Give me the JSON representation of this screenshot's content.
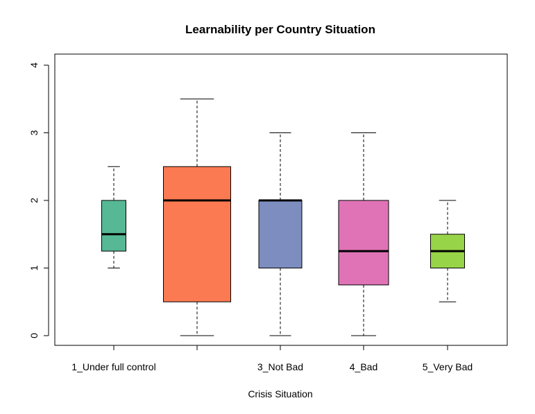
{
  "chart_data": {
    "type": "boxplot",
    "title": "Learnability per Country Situation",
    "xlabel": "Crisis Situation",
    "ylabel": "",
    "ylim": [
      0,
      4
    ],
    "yticks": [
      0,
      1,
      2,
      3,
      4
    ],
    "tick_labels": [
      "1_Under full control",
      "",
      "3_Not Bad",
      "4_Bad",
      "5_Very Bad"
    ],
    "boxes": [
      {
        "whisker_low": 1.0,
        "q1": 1.25,
        "median": 1.5,
        "q3": 2.0,
        "whisker_high": 2.5,
        "color": "#56B894"
      },
      {
        "whisker_low": 0.0,
        "q1": 0.5,
        "median": 2.0,
        "q3": 2.5,
        "whisker_high": 3.5,
        "color": "#FB7A52"
      },
      {
        "whisker_low": 0.0,
        "q1": 1.0,
        "median": 2.0,
        "q3": 2.0,
        "whisker_high": 3.0,
        "color": "#7D8DC0"
      },
      {
        "whisker_low": 0.0,
        "q1": 0.75,
        "median": 1.25,
        "q3": 2.0,
        "whisker_high": 3.0,
        "color": "#E073B6"
      },
      {
        "whisker_low": 0.5,
        "q1": 1.0,
        "median": 1.25,
        "q3": 1.5,
        "whisker_high": 2.0,
        "color": "#98D448"
      }
    ],
    "grid": false
  }
}
